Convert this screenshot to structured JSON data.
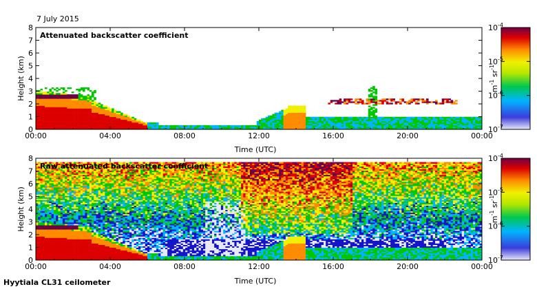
{
  "header": {
    "date": "7 July 2015",
    "footer": "Hyytiala CL31 ceilometer"
  },
  "colors": {
    "scale": [
      "#e8e8f8",
      "#1414c8",
      "#00b4ff",
      "#00c800",
      "#f0f000",
      "#ff8c00",
      "#dc0000",
      "#6e0046"
    ],
    "axis": "#000000"
  },
  "chart_data": [
    {
      "type": "heatmap",
      "title": "Attenuated backscatter coefficient",
      "xlabel": "Time (UTC)",
      "ylabel": "Height (km)",
      "x_ticks": [
        "00:00",
        "04:00",
        "08:00",
        "12:00",
        "16:00",
        "20:00",
        "00:00"
      ],
      "y_ticks": [
        "0",
        "1",
        "2",
        "3",
        "4",
        "5",
        "6",
        "7",
        "8"
      ],
      "xlim_hours": [
        0,
        24
      ],
      "ylim_km": [
        0,
        8
      ],
      "colorbar": {
        "ticks": [
          "10^-4",
          "10^-5",
          "10^-6",
          "10^-7"
        ],
        "base": "10",
        "exponents": [
          "-4",
          "-5",
          "-6",
          "-7"
        ],
        "unit_parts": [
          "m",
          "-1",
          " sr",
          "-1"
        ],
        "scale": "log",
        "range": [
          1e-07,
          0.0001
        ]
      }
    },
    {
      "type": "heatmap",
      "title": "Raw attenuated backscatter coefficient",
      "xlabel": "Time (UTC)",
      "ylabel": "Height (km)",
      "x_ticks": [
        "00:00",
        "04:00",
        "08:00",
        "12:00",
        "16:00",
        "20:00",
        "00:00"
      ],
      "y_ticks": [
        "0",
        "1",
        "2",
        "3",
        "4",
        "5",
        "6",
        "7",
        "8"
      ],
      "xlim_hours": [
        0,
        24
      ],
      "ylim_km": [
        0,
        8
      ],
      "colorbar": {
        "ticks": [
          "10^-4",
          "10^-5",
          "10^-6",
          "10^-7"
        ],
        "base": "10",
        "exponents": [
          "-4",
          "-5",
          "-6",
          "-7"
        ],
        "unit_parts": [
          "m",
          "-1",
          " sr",
          "-1"
        ],
        "scale": "log",
        "range": [
          1e-07,
          0.0001
        ]
      }
    }
  ]
}
